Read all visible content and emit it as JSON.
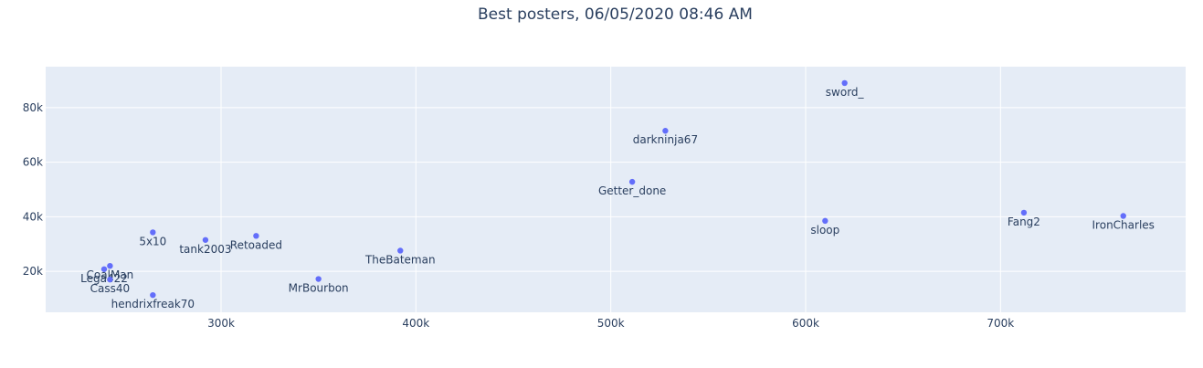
{
  "title": "Best posters, 06/05/2020 08:46 AM",
  "colors": {
    "plot_bg": "#e5ecf6",
    "grid": "#ffffff",
    "marker": "#636efa",
    "text": "#2a3f5f"
  },
  "chart_data": {
    "type": "scatter",
    "title": "Best posters, 06/05/2020 08:46 AM",
    "xlabel": "",
    "ylabel": "",
    "xlim": [
      210000,
      795000
    ],
    "ylim": [
      5000,
      95000
    ],
    "x_ticks": [
      300000,
      400000,
      500000,
      600000,
      700000
    ],
    "x_tick_labels": [
      "300k",
      "400k",
      "500k",
      "600k",
      "700k"
    ],
    "y_ticks": [
      20000,
      40000,
      60000,
      80000
    ],
    "y_tick_labels": [
      "20k",
      "40k",
      "60k",
      "80k"
    ],
    "grid": true,
    "legend": "none",
    "points": [
      {
        "label": "sword_",
        "x": 620000,
        "y": 89000
      },
      {
        "label": "darkninja67",
        "x": 528000,
        "y": 71500
      },
      {
        "label": "Getter_done",
        "x": 511000,
        "y": 52800
      },
      {
        "label": "sloop",
        "x": 610000,
        "y": 38500
      },
      {
        "label": "Fang2",
        "x": 712000,
        "y": 41500
      },
      {
        "label": "IronCharles",
        "x": 763000,
        "y": 40300
      },
      {
        "label": "5x10",
        "x": 265000,
        "y": 34300
      },
      {
        "label": "tank2003",
        "x": 292000,
        "y": 31500
      },
      {
        "label": "Retoaded",
        "x": 318000,
        "y": 33000
      },
      {
        "label": "TheBateman",
        "x": 392000,
        "y": 27600
      },
      {
        "label": "MrBourbon",
        "x": 350000,
        "y": 17200
      },
      {
        "label": "CoalMan",
        "x": 243000,
        "y": 22000
      },
      {
        "label": "Lega422",
        "x": 240000,
        "y": 20800
      },
      {
        "label": "Cass40",
        "x": 243000,
        "y": 17000
      },
      {
        "label": "hendrixfreak70",
        "x": 265000,
        "y": 11300
      }
    ]
  }
}
